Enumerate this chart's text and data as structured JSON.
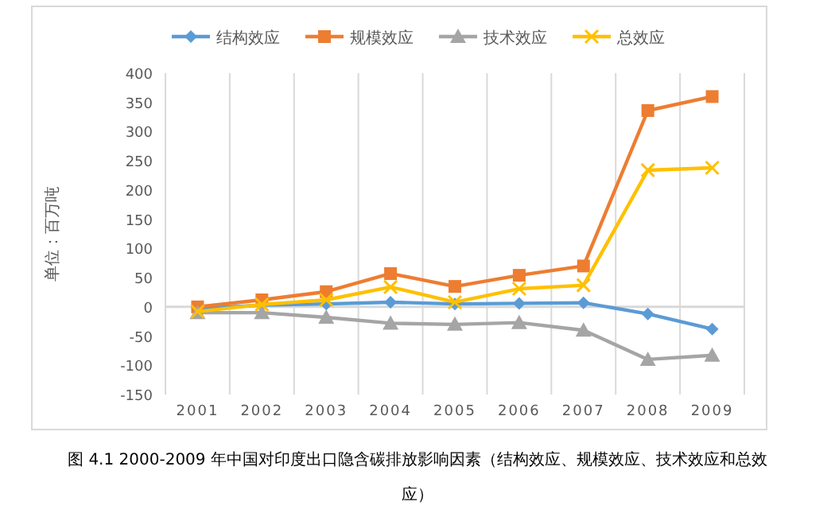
{
  "chart_data": {
    "type": "line",
    "title": "图 4.1 2000-2009 年中国对印度出口隐含碳排放影响因素（结构效应、规模效应、技术效应和总效应）",
    "ylabel": "单位：百万吨",
    "categories": [
      "2001",
      "2002",
      "2003",
      "2004",
      "2005",
      "2006",
      "2007",
      "2008",
      "2009"
    ],
    "series": [
      {
        "name": "结构效应",
        "color": "#5b9bd5",
        "marker": "diamond",
        "values": [
          -3,
          3,
          5,
          8,
          5,
          6,
          7,
          -12,
          -38
        ]
      },
      {
        "name": "规模效应",
        "color": "#ed7d31",
        "marker": "square",
        "values": [
          0,
          12,
          26,
          57,
          35,
          54,
          70,
          336,
          360
        ]
      },
      {
        "name": "技术效应",
        "color": "#a5a5a5",
        "marker": "triangle",
        "values": [
          -10,
          -10,
          -18,
          -28,
          -30,
          -27,
          -40,
          -90,
          -83
        ]
      },
      {
        "name": "总效应",
        "color": "#ffc000",
        "marker": "cross",
        "values": [
          -8,
          4,
          12,
          34,
          8,
          31,
          37,
          234,
          238
        ]
      }
    ],
    "ylim": [
      -150,
      400
    ],
    "yticks": [
      -150,
      -100,
      -50,
      0,
      50,
      100,
      150,
      200,
      250,
      300,
      350,
      400
    ],
    "grid": "x",
    "legend": "top",
    "line_style": "solid"
  }
}
